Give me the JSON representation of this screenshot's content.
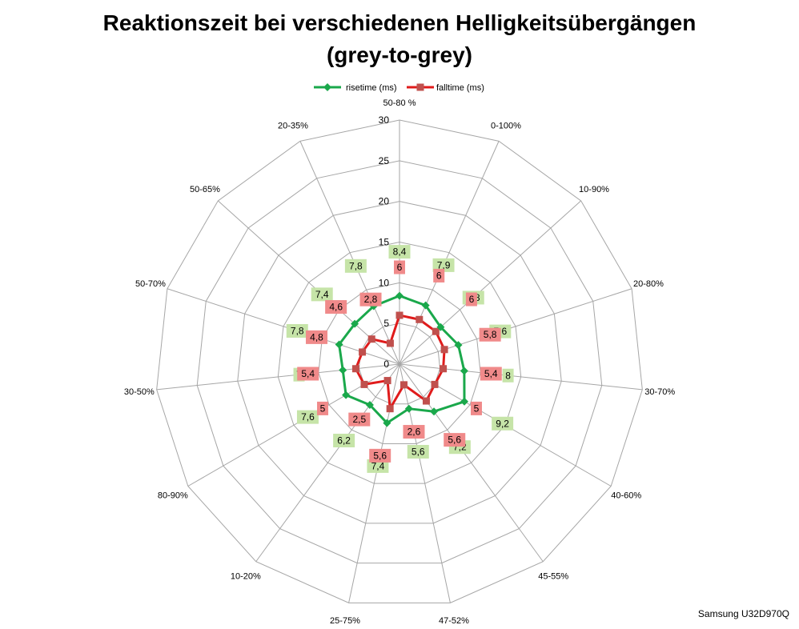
{
  "title_line1": "Reaktionszeit bei verschiedenen Helligkeitsübergängen",
  "title_line2": "(grey-to-grey)",
  "credit": "Samsung U32D970Q",
  "colors": {
    "risetime": "#1aa84b",
    "risetime_label_bg": "#c6e4a8",
    "falltime_line": "#e01b1b",
    "falltime_marker": "#c0504d",
    "falltime_label_bg": "#f08a8a",
    "grid": "#a6a6a6"
  },
  "chart_data": {
    "type": "radar",
    "categories": [
      "50-80 %",
      "0-100%",
      "10-90%",
      "20-80%",
      "30-70%",
      "40-60%",
      "45-55%",
      "47-52%",
      "25-75%",
      "10-20%",
      "80-90%",
      "30-50%",
      "50-70%",
      "50-65%",
      "20-35%"
    ],
    "axis_range": [
      0,
      30
    ],
    "axis_ticks": [
      "0",
      "5",
      "10",
      "15",
      "20",
      "25",
      "30"
    ],
    "legend_position": "top",
    "series": [
      {
        "name": "risetime (ms)",
        "values": [
          8.4,
          7.9,
          6.8,
          7.6,
          8,
          9.2,
          7.2,
          5.6,
          7.4,
          6.2,
          7.6,
          7,
          7.8,
          7.4,
          7.8
        ],
        "labels": [
          "8,4",
          "7,9",
          "6,8",
          "7,6",
          "8",
          "9,2",
          "7,2",
          "5,6",
          "7,4",
          "6,2",
          "7,6",
          "7",
          "7,8",
          "7,4",
          "7,8"
        ]
      },
      {
        "name": "falltime (ms)",
        "values": [
          6,
          6,
          6,
          5.8,
          5.4,
          5,
          5.6,
          2.6,
          5.6,
          2.5,
          5,
          5.4,
          4.8,
          4.6,
          2.8
        ],
        "labels": [
          "6",
          "6",
          "6",
          "5,8",
          "5,4",
          "5",
          "5,6",
          "2,6",
          "5,6",
          "2,5",
          "5",
          "5,4",
          "4,8",
          "4,6",
          "2,8"
        ]
      }
    ]
  }
}
